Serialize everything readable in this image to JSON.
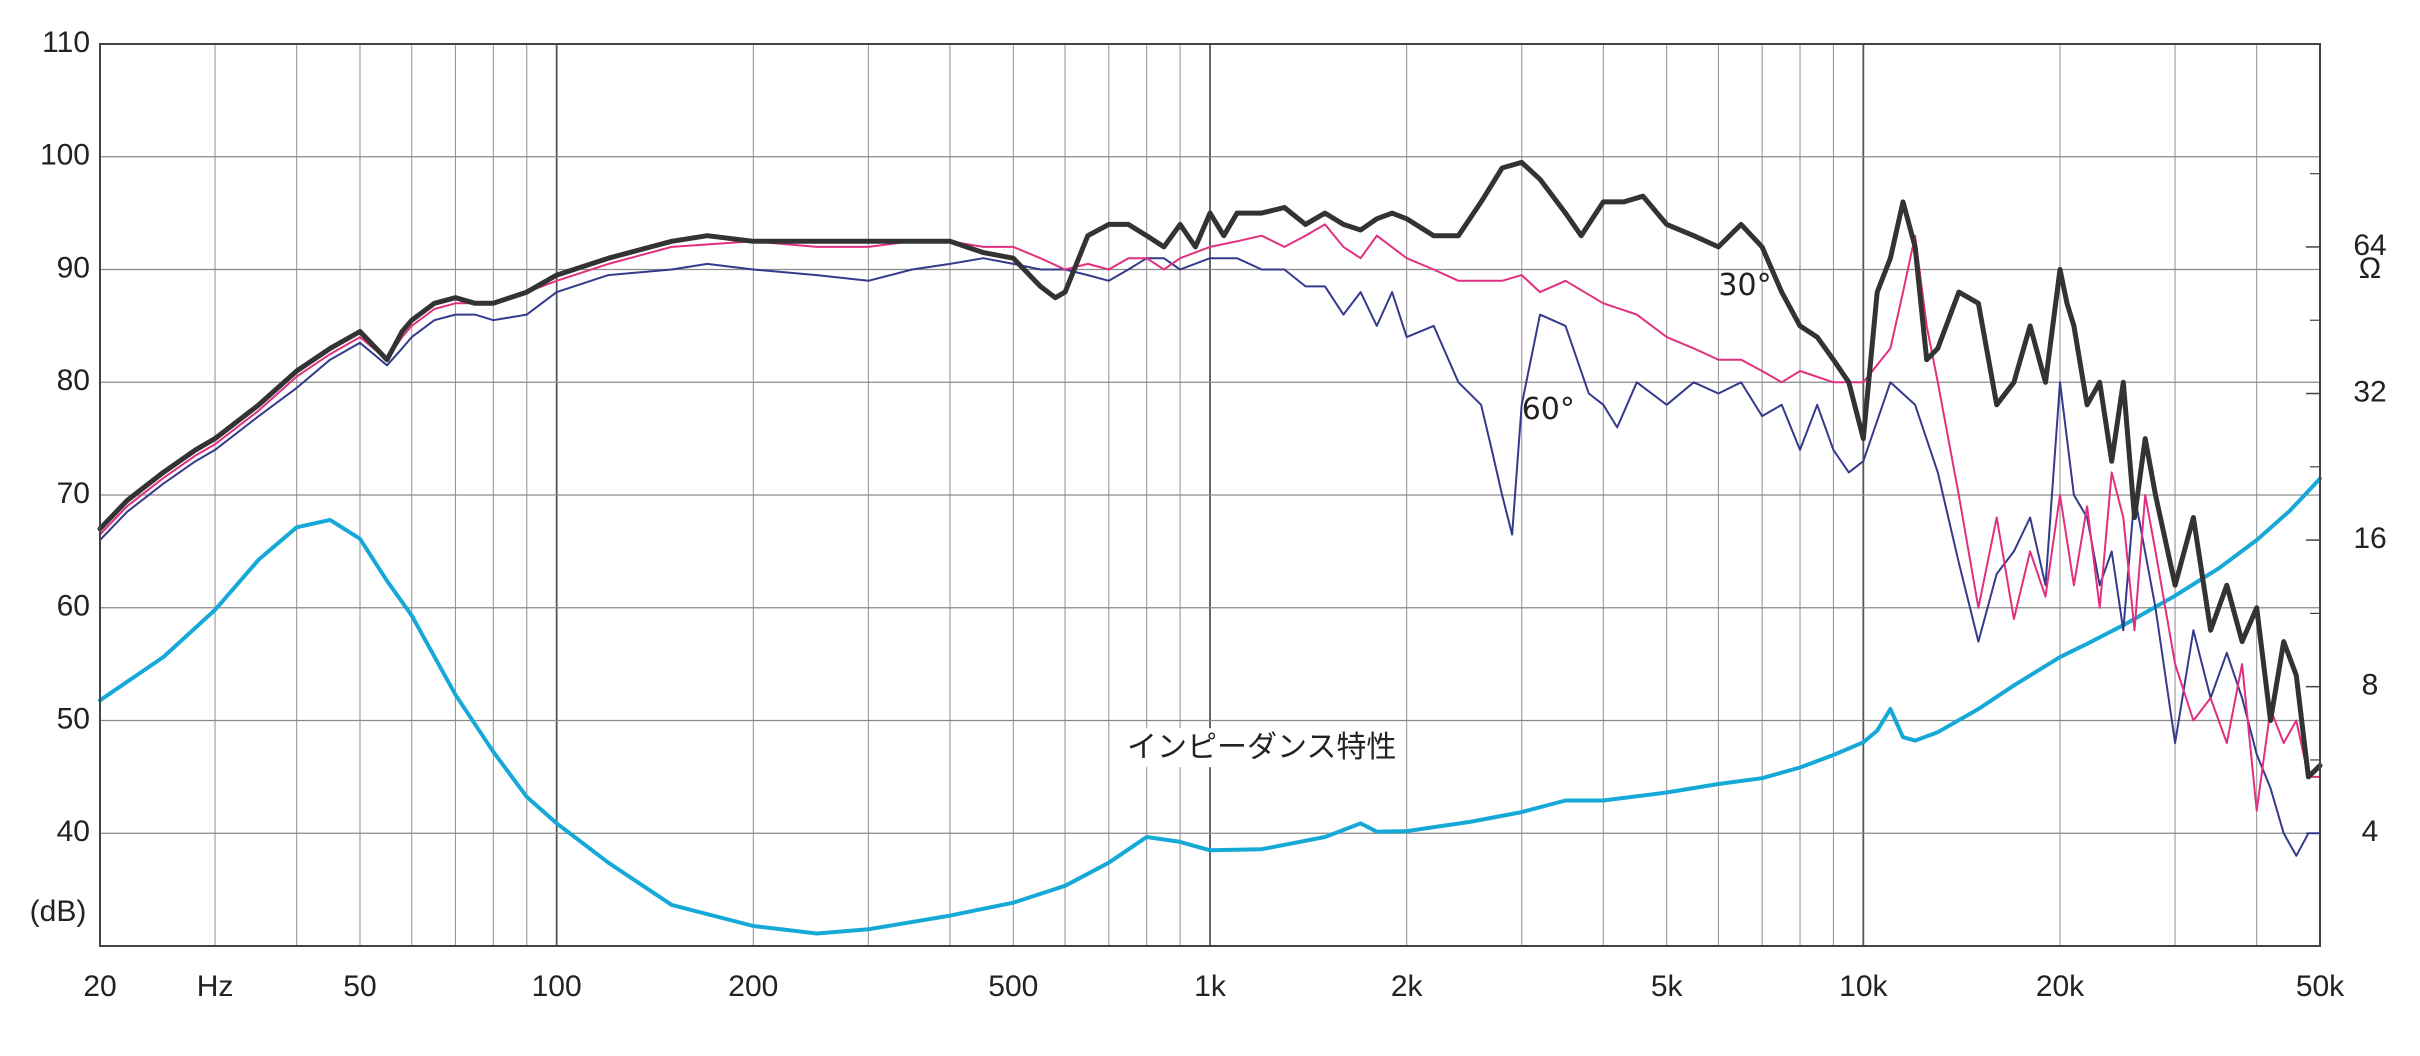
{
  "chart_data": {
    "type": "line",
    "title": "",
    "xscale": "log",
    "xlim": [
      20,
      50000
    ],
    "ylim": [
      30,
      110
    ],
    "grid": true,
    "x_ticks": [
      {
        "value": 20,
        "label": "20"
      },
      {
        "value": 30,
        "label": "Hz"
      },
      {
        "value": 50,
        "label": "50"
      },
      {
        "value": 100,
        "label": "100"
      },
      {
        "value": 200,
        "label": "200"
      },
      {
        "value": 500,
        "label": "500"
      },
      {
        "value": 1000,
        "label": "1k"
      },
      {
        "value": 2000,
        "label": "2k"
      },
      {
        "value": 5000,
        "label": "5k"
      },
      {
        "value": 10000,
        "label": "10k"
      },
      {
        "value": 20000,
        "label": "20k"
      },
      {
        "value": 50000,
        "label": "50k"
      }
    ],
    "y_ticks": [
      {
        "value": 110,
        "label": "110"
      },
      {
        "value": 100,
        "label": "100"
      },
      {
        "value": 90,
        "label": "90"
      },
      {
        "value": 80,
        "label": "80"
      },
      {
        "value": 70,
        "label": "70"
      },
      {
        "value": 60,
        "label": "60"
      },
      {
        "value": 50,
        "label": "50"
      },
      {
        "value": 40,
        "label": "40"
      }
    ],
    "y_unit_label": "(dB)",
    "y2_unit_label": "Ω",
    "y2_ticks": [
      {
        "value": 64,
        "label": "64"
      },
      {
        "value": 32,
        "label": "32"
      },
      {
        "value": 16,
        "label": "16"
      },
      {
        "value": 8,
        "label": "8"
      },
      {
        "value": 4,
        "label": "4"
      }
    ],
    "y2_scale": "log",
    "y2_map": {
      "ohm_at_40dB": 4,
      "dB_per_octave": 13
    },
    "annotations": [
      {
        "text": "30°",
        "x": 6000,
        "y": 88.5
      },
      {
        "text": "60°",
        "x": 3000,
        "y": 77.5
      },
      {
        "text": "インピーダンス特性",
        "x": 1200,
        "y": 47.5
      }
    ],
    "series": [
      {
        "axis": "spl",
        "color": "#333333",
        "width": 5,
        "x": [
          20,
          22,
          25,
          28,
          30,
          35,
          40,
          45,
          50,
          55,
          58,
          60,
          65,
          70,
          75,
          80,
          90,
          100,
          120,
          150,
          170,
          200,
          250,
          300,
          350,
          400,
          450,
          500,
          550,
          580,
          600,
          650,
          700,
          750,
          800,
          850,
          900,
          950,
          1000,
          1050,
          1100,
          1200,
          1300,
          1400,
          1500,
          1600,
          1700,
          1800,
          1900,
          2000,
          2200,
          2400,
          2600,
          2800,
          3000,
          3200,
          3500,
          3700,
          4000,
          4300,
          4600,
          5000,
          5500,
          6000,
          6500,
          7000,
          7500,
          8000,
          8500,
          9000,
          9500,
          10000,
          10500,
          11000,
          11500,
          12000,
          12500,
          13000,
          14000,
          15000,
          16000,
          17000,
          18000,
          19000,
          20000,
          20500,
          21000,
          22000,
          23000,
          24000,
          25000,
          26000,
          27000,
          28000,
          30000,
          32000,
          34000,
          36000,
          38000,
          40000,
          42000,
          44000,
          46000,
          48000,
          50000
        ],
        "y": [
          67,
          69.5,
          72,
          74,
          75,
          78,
          81,
          83,
          84.5,
          82,
          84.5,
          85.5,
          87,
          87.5,
          87,
          87,
          88,
          89.5,
          91,
          92.5,
          93,
          92.5,
          92.5,
          92.5,
          92.5,
          92.5,
          91.5,
          91,
          88.5,
          87.5,
          88,
          93,
          94,
          94,
          93,
          92,
          94,
          92,
          95,
          93,
          95,
          95,
          95.5,
          94,
          95,
          94,
          93.5,
          94.5,
          95,
          94.5,
          93,
          93,
          96,
          99,
          99.5,
          98,
          95,
          93,
          96,
          96,
          96.5,
          94,
          93,
          92,
          94,
          92,
          88,
          85,
          84,
          82,
          80,
          75,
          88,
          91,
          96,
          92,
          82,
          83,
          88,
          87,
          78,
          80,
          85,
          80,
          90,
          87,
          85,
          78,
          80,
          73,
          80,
          68,
          75,
          70,
          62,
          68,
          58,
          62,
          57,
          60,
          50,
          57,
          54,
          45,
          46
        ]
      },
      {
        "axis": "spl",
        "color": "#e0307f",
        "width": 2,
        "x": [
          20,
          22,
          25,
          28,
          30,
          35,
          40,
          45,
          50,
          55,
          58,
          60,
          65,
          70,
          75,
          80,
          90,
          100,
          120,
          150,
          200,
          250,
          300,
          350,
          400,
          450,
          500,
          550,
          600,
          650,
          700,
          750,
          800,
          850,
          900,
          1000,
          1100,
          1200,
          1300,
          1400,
          1500,
          1600,
          1700,
          1800,
          2000,
          2200,
          2400,
          2600,
          2800,
          3000,
          3200,
          3500,
          4000,
          4500,
          5000,
          5500,
          6000,
          6500,
          7000,
          7500,
          8000,
          9000,
          10000,
          11000,
          11500,
          12000,
          12500,
          13000,
          14000,
          15000,
          16000,
          17000,
          18000,
          19000,
          20000,
          21000,
          22000,
          23000,
          24000,
          25000,
          26000,
          27000,
          28000,
          30000,
          32000,
          34000,
          36000,
          38000,
          40000,
          42000,
          44000,
          46000,
          48000,
          50000
        ],
        "y": [
          66.5,
          69,
          71.5,
          73.5,
          74.5,
          77.5,
          80.5,
          82.5,
          84,
          82,
          84,
          85,
          86.5,
          87,
          87,
          87,
          88,
          89,
          90.5,
          92,
          92.5,
          92,
          92,
          92.5,
          92.5,
          92,
          92,
          91,
          90,
          90.5,
          90,
          91,
          91,
          90,
          91,
          92,
          92.5,
          93,
          92,
          93,
          94,
          92,
          91,
          93,
          91,
          90,
          89,
          89,
          89,
          89.5,
          88,
          89,
          87,
          86,
          84,
          83,
          82,
          82,
          81,
          80,
          81,
          80,
          80,
          83,
          88,
          93,
          85,
          80,
          70,
          60,
          68,
          59,
          65,
          61,
          70,
          62,
          69,
          60,
          72,
          68,
          58,
          70,
          65,
          55,
          50,
          52,
          48,
          55,
          42,
          51,
          48,
          50,
          45,
          45
        ]
      },
      {
        "axis": "spl",
        "color": "#343a8c",
        "width": 2,
        "x": [
          20,
          22,
          25,
          28,
          30,
          35,
          40,
          45,
          50,
          55,
          58,
          60,
          65,
          70,
          75,
          80,
          90,
          100,
          120,
          150,
          170,
          200,
          250,
          300,
          350,
          400,
          450,
          500,
          550,
          600,
          650,
          700,
          750,
          800,
          850,
          900,
          1000,
          1100,
          1200,
          1300,
          1400,
          1500,
          1600,
          1700,
          1800,
          1900,
          2000,
          2200,
          2400,
          2600,
          2700,
          2800,
          2900,
          3000,
          3200,
          3500,
          3800,
          4000,
          4200,
          4500,
          5000,
          5500,
          6000,
          6500,
          7000,
          7500,
          8000,
          8500,
          9000,
          9500,
          10000,
          11000,
          12000,
          13000,
          14000,
          15000,
          16000,
          17000,
          18000,
          19000,
          20000,
          21000,
          22000,
          23000,
          24000,
          25000,
          26000,
          28000,
          30000,
          32000,
          34000,
          36000,
          38000,
          40000,
          42000,
          44000,
          46000,
          48000,
          50000
        ],
        "y": [
          66,
          68.5,
          71,
          73,
          74,
          77,
          79.5,
          82,
          83.5,
          81.5,
          83,
          84,
          85.5,
          86,
          86,
          85.5,
          86,
          88,
          89.5,
          90,
          90.5,
          90,
          89.5,
          89,
          90,
          90.5,
          91,
          90.5,
          90,
          90,
          89.5,
          89,
          90,
          91,
          91,
          90,
          91,
          91,
          90,
          90,
          88.5,
          88.5,
          86,
          88,
          85,
          88,
          84,
          85,
          80,
          78,
          74,
          70,
          66.5,
          78,
          86,
          85,
          79,
          78,
          76,
          80,
          78,
          80,
          79,
          80,
          77,
          78,
          74,
          78,
          74,
          72,
          73,
          80,
          78,
          72,
          64,
          57,
          63,
          65,
          68,
          62,
          80,
          70,
          68,
          62,
          65,
          58,
          70,
          60,
          48,
          58,
          52,
          56,
          52,
          47,
          44,
          40,
          38,
          40,
          40
        ]
      },
      {
        "axis": "impedance",
        "color": "#16a9d8",
        "width": 4,
        "x": [
          20,
          25,
          30,
          35,
          40,
          45,
          50,
          55,
          60,
          70,
          80,
          90,
          100,
          120,
          150,
          200,
          250,
          300,
          400,
          500,
          600,
          700,
          800,
          900,
          1000,
          1200,
          1500,
          1700,
          1800,
          2000,
          2500,
          3000,
          3500,
          4000,
          5000,
          6000,
          7000,
          8000,
          9000,
          10000,
          10500,
          11000,
          11500,
          12000,
          13000,
          15000,
          17000,
          20000,
          22000,
          25000,
          30000,
          35000,
          40000,
          45000,
          50000
        ],
        "y": [
          7.5,
          9.2,
          11.5,
          14.6,
          17,
          17.6,
          16.1,
          13.2,
          11.2,
          7.7,
          5.88,
          4.75,
          4.19,
          3.48,
          2.85,
          2.58,
          2.49,
          2.54,
          2.71,
          2.88,
          3.12,
          3.48,
          3.93,
          3.84,
          3.69,
          3.71,
          3.93,
          4.19,
          4.03,
          4.04,
          4.22,
          4.42,
          4.67,
          4.67,
          4.85,
          5.05,
          5.19,
          5.46,
          5.79,
          6.15,
          6.5,
          7.2,
          6.3,
          6.2,
          6.45,
          7.2,
          8.05,
          9.2,
          9.8,
          10.7,
          12.3,
          14,
          16,
          18.4,
          21.4
        ]
      }
    ]
  }
}
